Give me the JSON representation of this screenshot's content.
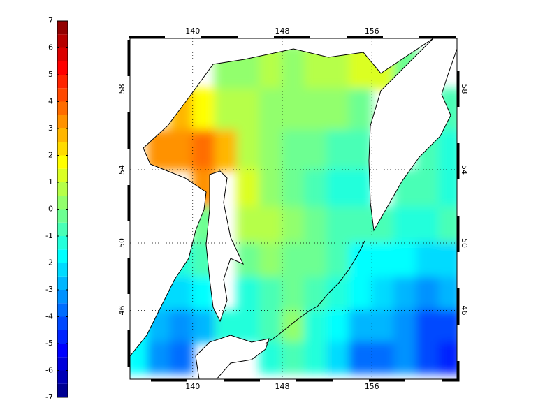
{
  "chart_data": {
    "type": "map",
    "projection": "mercator",
    "colormap": "jet",
    "grid": true,
    "xlim": [
      134.4,
      163.6
    ],
    "ylim": [
      41.6,
      60.3
    ],
    "xticks": [
      140,
      148,
      156
    ],
    "yticks": [
      46,
      50,
      54,
      58
    ],
    "colorbar": {
      "lim": [
        -7,
        7
      ],
      "step": 0.5,
      "ticks": [
        -7,
        -6,
        -5,
        -4,
        -3,
        -2,
        -1,
        0,
        1,
        2,
        3,
        4,
        5,
        6,
        7
      ]
    },
    "field": {
      "lon": [
        135,
        137,
        139,
        141,
        143,
        145,
        147,
        149,
        151,
        153,
        155,
        157,
        159,
        161,
        163
      ],
      "lat": [
        59,
        57,
        55,
        53,
        51,
        49,
        47,
        45,
        43
      ],
      "values": [
        [
          null,
          null,
          null,
          null,
          0,
          0,
          0.5,
          0,
          0.5,
          0.5,
          1,
          1,
          -0.5,
          null,
          null
        ],
        [
          null,
          null,
          2.5,
          1.5,
          0.5,
          0.5,
          0,
          0,
          0,
          0,
          -0.5,
          null,
          null,
          null,
          -1
        ],
        [
          null,
          3,
          3,
          3.5,
          2.5,
          0.5,
          0,
          -0.5,
          -0.5,
          -1,
          -1,
          null,
          null,
          -1,
          -1.5
        ],
        [
          null,
          null,
          null,
          3,
          null,
          1,
          0,
          -0.5,
          -1,
          -1.5,
          -1.5,
          null,
          -1,
          -1,
          -1.5
        ],
        [
          null,
          null,
          null,
          -0.5,
          null,
          0.5,
          0.5,
          0,
          -0.5,
          -1,
          -1,
          -1,
          -1.5,
          -1.5,
          -1
        ],
        [
          null,
          null,
          -1.5,
          -1,
          null,
          -0.5,
          0,
          -0.5,
          -0.5,
          -1,
          -2,
          -2,
          -2,
          -2.5,
          -2.5
        ],
        [
          null,
          -2.5,
          -2.5,
          -2,
          null,
          -1.5,
          -1,
          -0.5,
          -1,
          -1.5,
          -2,
          -2.5,
          -3,
          -3.5,
          -3
        ],
        [
          -2,
          -3,
          -3.5,
          -3,
          -1.5,
          -1.5,
          -1,
          0,
          -1.5,
          -2,
          -3,
          -3,
          -3.5,
          -4.5,
          -4.5
        ],
        [
          -2,
          -3.5,
          -4,
          null,
          null,
          null,
          -1.5,
          -1,
          -1.5,
          -2.5,
          -4,
          -4,
          -3.5,
          -4.5,
          -5
        ]
      ]
    }
  }
}
